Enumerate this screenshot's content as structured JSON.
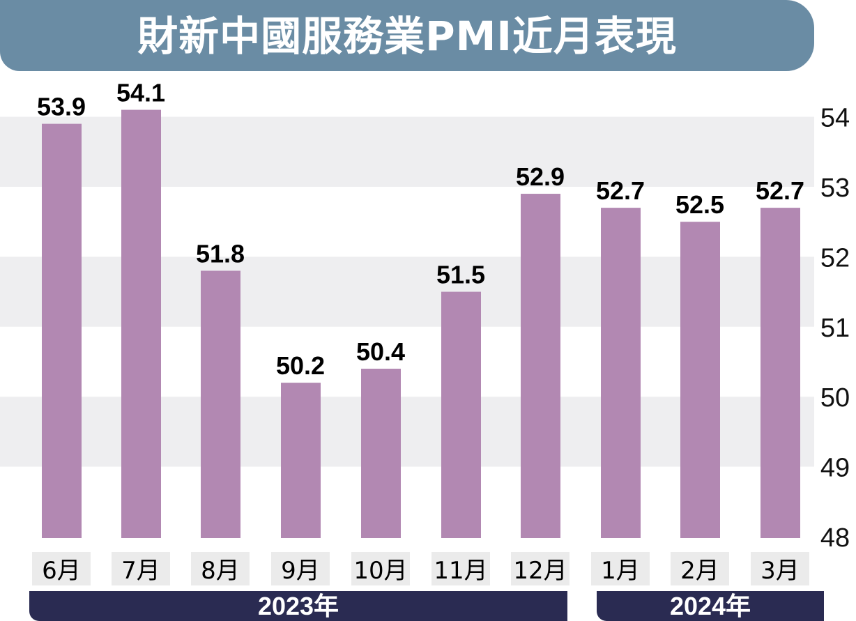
{
  "title": "財新中國服務業PMI近月表現",
  "colors": {
    "bar": "#b288b2",
    "band": "#eeeef0",
    "title_bg": "#6a8ca4",
    "year_bg": "#2a2b52",
    "month_bg": "#ebebeb"
  },
  "chart_data": {
    "type": "bar",
    "title": "財新中國服務業PMI近月表現",
    "categories": [
      "6月",
      "7月",
      "8月",
      "9月",
      "10月",
      "11月",
      "12月",
      "1月",
      "2月",
      "3月"
    ],
    "values": [
      53.9,
      54.1,
      51.8,
      50.2,
      50.4,
      51.5,
      52.9,
      52.7,
      52.5,
      52.7
    ],
    "value_labels": [
      "53.9",
      "54.1",
      "51.8",
      "50.2",
      "50.4",
      "51.5",
      "52.9",
      "52.7",
      "52.5",
      "52.7"
    ],
    "ylim": [
      48,
      54
    ],
    "yticks": [
      "48",
      "49",
      "50",
      "51",
      "52",
      "53",
      "54"
    ],
    "yaxis_position": "right",
    "year_groups": [
      {
        "label": "2023年",
        "from": 0,
        "to": 6
      },
      {
        "label": "2024年",
        "from": 7,
        "to": 9
      }
    ]
  }
}
